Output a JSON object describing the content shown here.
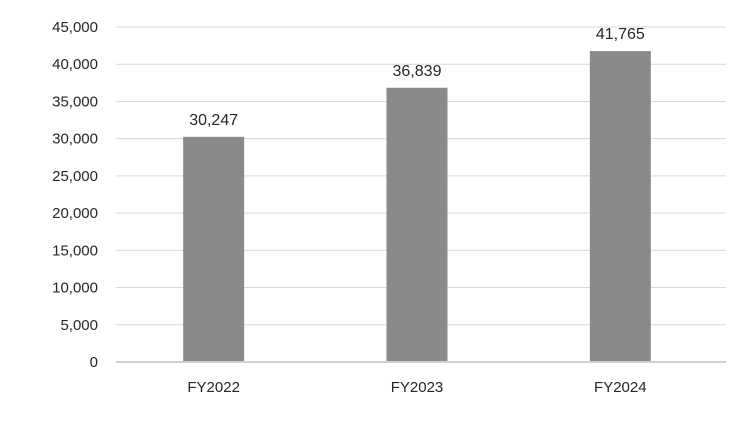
{
  "chart_data": {
    "type": "bar",
    "title": "",
    "xlabel": "",
    "ylabel": "",
    "categories": [
      "FY2022",
      "FY2023",
      "FY2024"
    ],
    "values": [
      30247,
      36839,
      41765
    ],
    "data_labels": [
      "30,247",
      "36,839",
      "41,765"
    ],
    "ylim": [
      0,
      45000
    ],
    "yticks": [
      0,
      5000,
      10000,
      15000,
      20000,
      25000,
      30000,
      35000,
      40000,
      45000
    ],
    "ytick_labels": [
      "0",
      "5,000",
      "10,000",
      "15,000",
      "20,000",
      "25,000",
      "30,000",
      "35,000",
      "40,000",
      "45,000"
    ],
    "grid": true,
    "legend": "none",
    "bar_color": "#8a8a8c",
    "grid_color": "#d9d9d9"
  }
}
